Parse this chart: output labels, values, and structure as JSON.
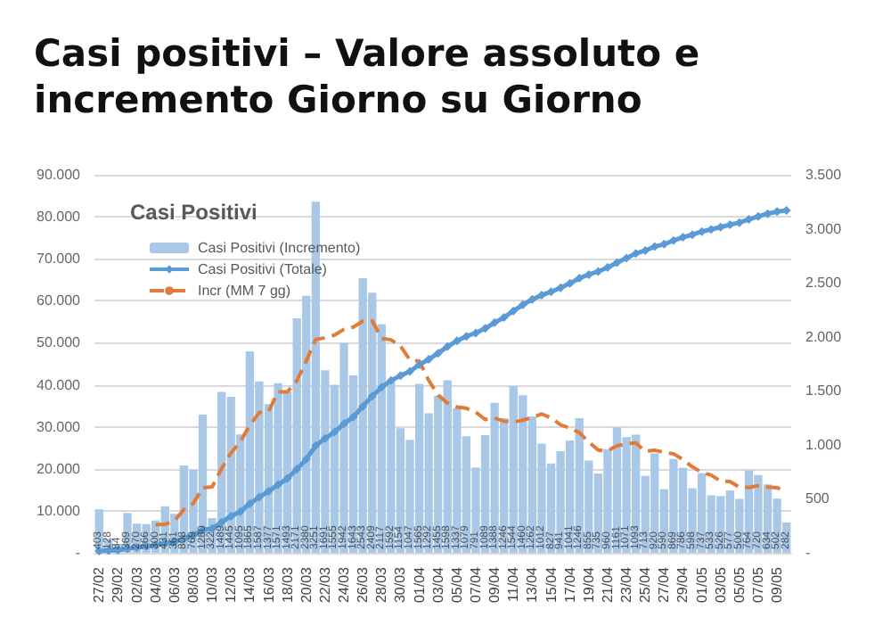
{
  "chart_data": {
    "type": "bar",
    "title": "Casi positivi – Valore assoluto e incremento Giorno su Giorno",
    "subtitle": "Casi Positivi",
    "categories": [
      "27/02",
      null,
      "29/02",
      null,
      "02/03",
      null,
      "04/03",
      null,
      "06/03",
      null,
      "08/03",
      null,
      "10/03",
      null,
      "12/03",
      null,
      "14/03",
      null,
      "16/03",
      null,
      "18/03",
      null,
      "20/03",
      null,
      "22/03",
      null,
      "24/03",
      null,
      "26/03",
      null,
      "28/03",
      null,
      "30/03",
      null,
      "01/04",
      null,
      "03/04",
      null,
      "05/04",
      null,
      "07/04",
      null,
      "09/04",
      null,
      "11/04",
      null,
      "13/04",
      null,
      "15/04",
      null,
      "17/04",
      null,
      "19/04",
      null,
      "21/04",
      null,
      "23/04",
      null,
      "25/04",
      null,
      "27/04",
      null,
      "29/04",
      null,
      "01/05",
      null,
      "03/05",
      null,
      "05/05",
      null,
      "07/05",
      null,
      "09/05",
      null
    ],
    "series": [
      {
        "name": "Casi Positivi (Incremento)",
        "axis": "y2",
        "color": "#a9c8e8",
        "values": [
          403,
          128,
          84,
          369,
          270,
          266,
          300,
          431,
          361,
          808,
          769,
          1280,
          322,
          1489,
          1445,
          1095,
          1865,
          1587,
          1377,
          1571,
          1493,
          2171,
          2380,
          3251,
          1691,
          1555,
          1942,
          1643,
          2543,
          2409,
          2117,
          1592,
          1154,
          1047,
          1565,
          1292,
          1455,
          1598,
          1337,
          1079,
          791,
          1089,
          1388,
          1246,
          1544,
          1460,
          1262,
          1012,
          827,
          941,
          1041,
          1246,
          855,
          735,
          960,
          1161,
          1071,
          1093,
          713,
          920,
          590,
          869,
          786,
          598,
          737,
          533,
          526,
          577,
          500,
          764,
          720,
          634,
          502,
          282
        ],
        "value_labels": [
          "403",
          "128",
          "84",
          "369",
          "270",
          "266",
          "300",
          "431",
          "361",
          "808",
          "769",
          "1280",
          "322",
          "1489",
          "1445",
          "1095",
          "1865",
          "1587",
          "1377",
          "1571",
          "1493",
          "2171",
          "2380",
          "3251",
          "1691",
          "1555",
          "1942",
          "1643",
          "2543",
          "2409",
          "2117",
          "1592",
          "1154",
          "1047",
          "1565",
          "1292",
          "1455",
          "1598",
          "1337",
          "1079",
          "791",
          "1089",
          "1388",
          "1246",
          "1544",
          "1460",
          "1262",
          "1012",
          "827",
          "941",
          "1041",
          "1246",
          "855",
          "735",
          "960",
          "1161",
          "1071",
          "1093",
          "713",
          "920",
          "590",
          "869",
          "786",
          "598",
          "737",
          "533",
          "526",
          "577",
          "500",
          "764",
          "720",
          "634",
          "502",
          "282"
        ]
      },
      {
        "name": "Casi Positivi (Totale)",
        "type": "line",
        "color": "#5b9bd5",
        "marker": "diamond",
        "line_style": "solid",
        "values": [
          403,
          531,
          615,
          984,
          1254,
          1520,
          1820,
          2251,
          2612,
          3420,
          4189,
          5469,
          5791,
          7280,
          8725,
          9820,
          11685,
          13272,
          14649,
          16220,
          17713,
          19884,
          22264,
          25515,
          27206,
          28761,
          30703,
          32346,
          34889,
          37298,
          39415,
          41007,
          42161,
          43208,
          44773,
          46065,
          47520,
          49118,
          50455,
          51534,
          52325,
          53414,
          54802,
          56048,
          57592,
          59052,
          60314,
          61326,
          62153,
          63094,
          64135,
          65381,
          66236,
          66971,
          67931,
          69092,
          70163,
          71256,
          71969,
          72889,
          73479,
          74348,
          75134,
          75732,
          76469,
          77002,
          77528,
          78105,
          78605,
          79369,
          80089,
          80723,
          81225,
          81507
        ]
      },
      {
        "name": "Incr (MM 7 gg)",
        "type": "line",
        "axis": "y2",
        "color": "#e07b39",
        "marker": "none",
        "line_style": "dashed",
        "values": [
          null,
          null,
          null,
          null,
          null,
          null,
          260,
          264,
          297,
          401,
          458,
          602,
          610,
          780,
          925,
          1030,
          1181,
          1298,
          1311,
          1490,
          1490,
          1594,
          1778,
          1976,
          1991,
          2016,
          2069,
          2090,
          2144,
          2148,
          1986,
          1972,
          1914,
          1786,
          1775,
          1597,
          1460,
          1386,
          1350,
          1339,
          1302,
          1234,
          1248,
          1218,
          1211,
          1228,
          1254,
          1286,
          1248,
          1185,
          1155,
          1113,
          1026,
          951,
          944,
          991,
          1010,
          1017,
          941,
          950,
          930,
          917,
          863,
          796,
          745,
          719,
          663,
          661,
          608,
          605,
          622,
          608,
          603,
          568
        ]
      }
    ],
    "ylim": [
      0,
      90000
    ],
    "yticks": [
      {
        "value": 0,
        "label": "-"
      },
      {
        "value": 10000,
        "label": "10.000"
      },
      {
        "value": 20000,
        "label": "20.000"
      },
      {
        "value": 30000,
        "label": "30.000"
      },
      {
        "value": 40000,
        "label": "40.000"
      },
      {
        "value": 50000,
        "label": "50.000"
      },
      {
        "value": 60000,
        "label": "60.000"
      },
      {
        "value": 70000,
        "label": "70.000"
      },
      {
        "value": 80000,
        "label": "80.000"
      },
      {
        "value": 90000,
        "label": "90.000"
      }
    ],
    "y2lim": [
      0,
      3500
    ],
    "y2ticks": [
      {
        "value": 0,
        "label": "-"
      },
      {
        "value": 500,
        "label": "500"
      },
      {
        "value": 1000,
        "label": "1.000"
      },
      {
        "value": 1500,
        "label": "1.500"
      },
      {
        "value": 2000,
        "label": "2.000"
      },
      {
        "value": 2500,
        "label": "2.500"
      },
      {
        "value": 3000,
        "label": "3.000"
      },
      {
        "value": 3500,
        "label": "3.500"
      }
    ],
    "grid": "y",
    "legend": "top left"
  }
}
